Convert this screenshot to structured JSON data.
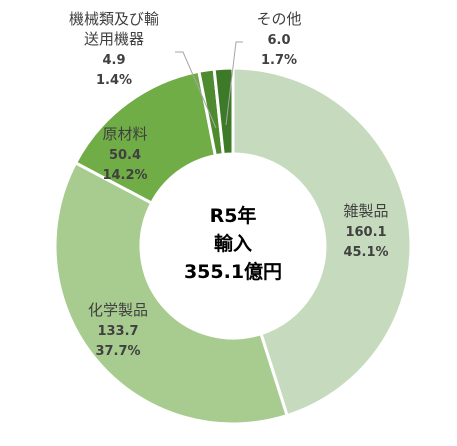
{
  "chart_data": {
    "type": "pie",
    "variant": "donut",
    "center_label": [
      "R5年",
      "輸入",
      "355.1億円"
    ],
    "slices": [
      {
        "name": "雑製品",
        "value": 160.1,
        "percent": "45.1%",
        "color": "#c6dbbd"
      },
      {
        "name": "化学製品",
        "value": 133.7,
        "percent": "37.7%",
        "color": "#a8cc90"
      },
      {
        "name": "原材料",
        "value": 50.4,
        "percent": "14.2%",
        "color": "#70ad47"
      },
      {
        "name": "機械類及び輸送用機器",
        "value": 4.9,
        "percent": "1.4%",
        "color": "#4e8b2e"
      },
      {
        "name": "その他",
        "value": 6.0,
        "percent": "1.7%",
        "color": "#3c7a28"
      }
    ],
    "labels": [
      {
        "lines": [
          "雑製品"
        ],
        "value_text": "160.1",
        "percent_text": "45.1%"
      },
      {
        "lines": [
          "化学製品"
        ],
        "value_text": "133.7",
        "percent_text": "37.7%"
      },
      {
        "lines": [
          "原材料"
        ],
        "value_text": "50.4",
        "percent_text": "14.2%"
      },
      {
        "lines": [
          "機械類及び輸",
          "送用機器"
        ],
        "value_text": "4.9",
        "percent_text": "1.4%"
      },
      {
        "lines": [
          "その他"
        ],
        "value_text": "6.0",
        "percent_text": "1.7%"
      }
    ]
  }
}
